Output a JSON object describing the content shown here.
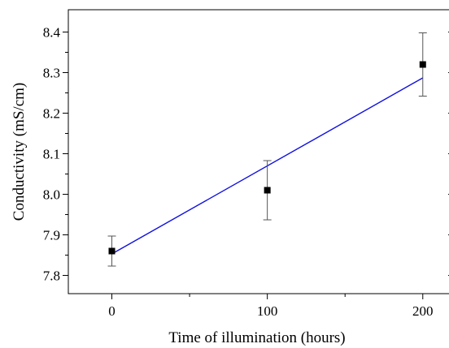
{
  "chart_data": {
    "type": "scatter",
    "xlabel": "Time of illumination (hours)",
    "ylabel": "Conductivity (mS/cm)",
    "xlim": [
      -28,
      220
    ],
    "ylim": [
      7.755,
      8.455
    ],
    "xticks": [
      0,
      100,
      200
    ],
    "xtick_labels": [
      "0",
      "100",
      "200"
    ],
    "yticks": [
      7.8,
      7.9,
      8.0,
      8.1,
      8.2,
      8.3,
      8.4
    ],
    "ytick_labels": [
      "7.8",
      "7.9",
      "8.0",
      "8.1",
      "8.2",
      "8.3",
      "8.4"
    ],
    "grid": false,
    "legend": "none",
    "series": [
      {
        "x": [
          0,
          100,
          200
        ],
        "y": [
          7.86,
          8.01,
          8.32
        ],
        "error": [
          0.037,
          0.073,
          0.078
        ],
        "marker": "square",
        "color": "#000000"
      }
    ],
    "fit_line": {
      "x": [
        0,
        200
      ],
      "y": [
        7.853,
        8.287
      ],
      "color": "#1010e0"
    }
  }
}
